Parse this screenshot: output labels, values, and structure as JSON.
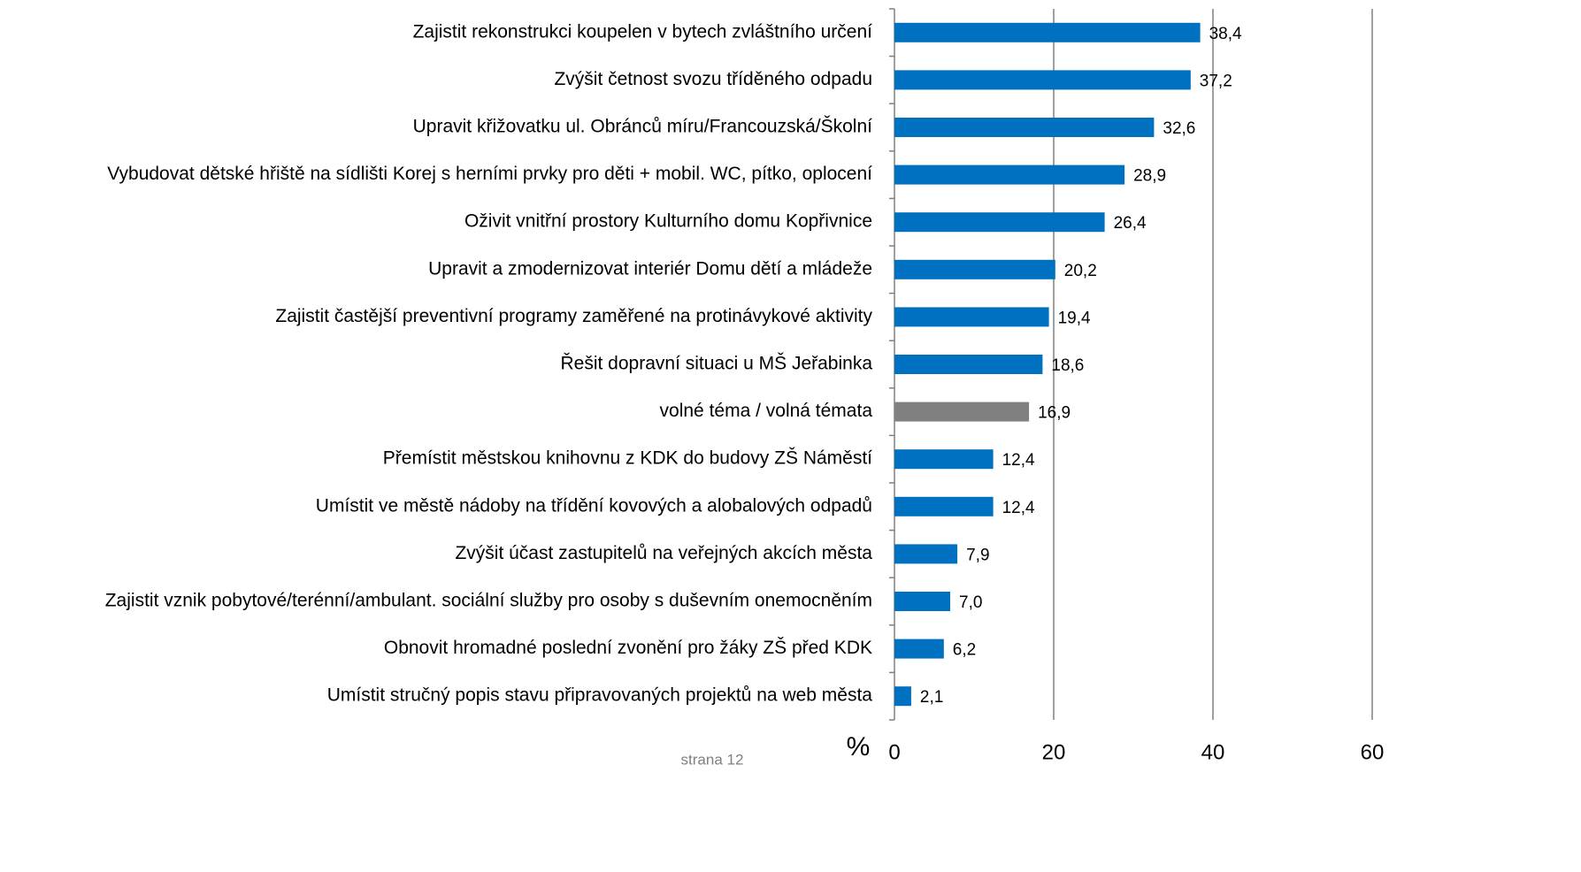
{
  "chart_data": {
    "type": "barh",
    "categories": [
      "Zajistit rekonstrukci koupelen v bytech zvláštního určení",
      "Zvýšit četnost svozu tříděného odpadu",
      "Upravit křižovatku ul. Obránců míru/Francouzská/Školní",
      "Vybudovat dětské hřiště na sídlišti Korej s herními prvky pro děti + mobil. WC, pítko, oplocení",
      "Oživit vnitřní prostory Kulturního domu Kopřivnice",
      "Upravit a zmodernizovat interiér Domu dětí a mládeže",
      "Zajistit častější preventivní programy zaměřené na protinávykové aktivity",
      "Řešit dopravní situaci u MŠ Jeřabinka",
      "volné téma / volná témata",
      "Přemístit městskou knihovnu z KDK do budovy ZŠ Náměstí",
      "Umístit ve městě nádoby na třídění kovových a alobalových odpadů",
      "Zvýšit účast zastupitelů na veřejných akcích města",
      "Zajistit vznik pobytové/terénní/ambulant. sociální služby pro osoby s duševním onemocněním",
      "Obnovit hromadné poslední zvonění pro žáky ZŠ před KDK",
      "Umístit stručný popis stavu připravovaných projektů na web města"
    ],
    "values": [
      38.4,
      37.2,
      32.6,
      28.9,
      26.4,
      20.2,
      19.4,
      18.6,
      16.9,
      12.4,
      12.4,
      7.9,
      7.0,
      6.2,
      2.1
    ],
    "value_labels": [
      "38,4",
      "37,2",
      "32,6",
      "28,9",
      "26,4",
      "20,2",
      "19,4",
      "18,6",
      "16,9",
      "12,4",
      "12,4",
      "7,9",
      "7,0",
      "6,2",
      "2,1"
    ],
    "colors": [
      "#0070c0",
      "#0070c0",
      "#0070c0",
      "#0070c0",
      "#0070c0",
      "#0070c0",
      "#0070c0",
      "#0070c0",
      "#808080",
      "#0070c0",
      "#0070c0",
      "#0070c0",
      "#0070c0",
      "#0070c0",
      "#0070c0"
    ],
    "xlim": [
      0,
      60
    ],
    "xticks": [
      0,
      20,
      40,
      60
    ],
    "xlabel": "%",
    "grid": true,
    "footer": "strana 12"
  }
}
